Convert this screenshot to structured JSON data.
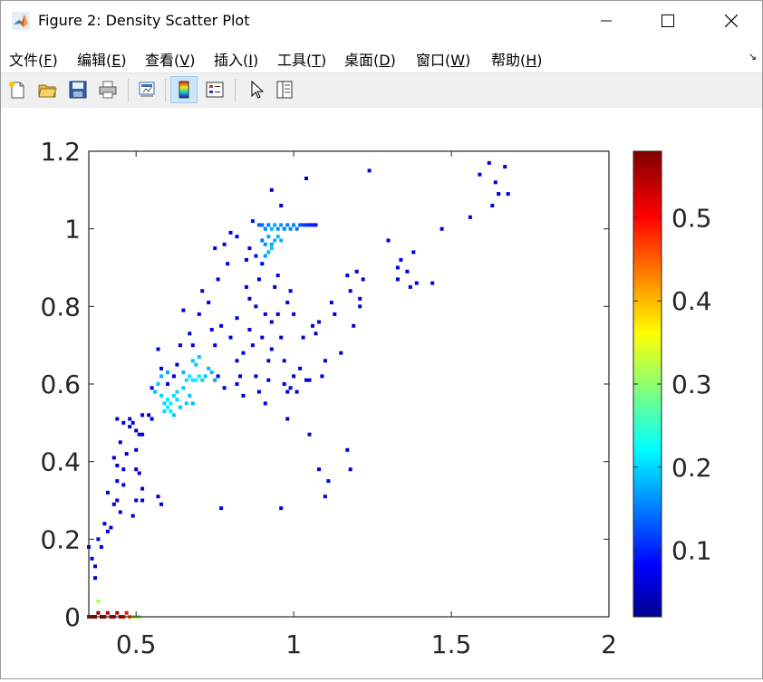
{
  "window": {
    "title": "Figure 2: Density Scatter Plot"
  },
  "menu": {
    "items": [
      {
        "label": "文件(",
        "key": "F",
        "suffix": ")"
      },
      {
        "label": "编辑(",
        "key": "E",
        "suffix": ")"
      },
      {
        "label": "查看(",
        "key": "V",
        "suffix": ")"
      },
      {
        "label": "插入(",
        "key": "I",
        "suffix": ")"
      },
      {
        "label": "工具(",
        "key": "T",
        "suffix": ")"
      },
      {
        "label": "桌面(",
        "key": "D",
        "suffix": ")"
      },
      {
        "label": "窗口(",
        "key": "W",
        "suffix": ")"
      },
      {
        "label": "帮助(",
        "key": "H",
        "suffix": ")"
      }
    ]
  },
  "toolbar": {
    "buttons": [
      "new-figure-icon",
      "open-file-icon",
      "save-icon",
      "print-icon",
      "link-plot-icon",
      "colorbar-toggle-icon",
      "legend-toggle-icon",
      "edit-pointer-icon",
      "property-inspector-icon"
    ],
    "active": "colorbar-toggle-icon"
  },
  "chart_data": {
    "type": "scatter",
    "colormap": "jet",
    "xlim": [
      0.35,
      2
    ],
    "ylim": [
      0,
      1.2
    ],
    "xticks": [
      "0.5",
      "1",
      "1.5",
      "2"
    ],
    "xtick_values": [
      0.5,
      1,
      1.5,
      2
    ],
    "yticks": [
      "0",
      "0.2",
      "0.4",
      "0.6",
      "0.8",
      "1",
      "1.2"
    ],
    "ytick_values": [
      0,
      0.2,
      0.4,
      0.6,
      0.8,
      1,
      1.2
    ],
    "colorbar": {
      "range": [
        0.02,
        0.58
      ],
      "ticks": [
        "0.1",
        "0.2",
        "0.3",
        "0.4",
        "0.5"
      ],
      "tick_values": [
        0.1,
        0.2,
        0.3,
        0.4,
        0.5
      ]
    },
    "points": [
      [
        0.35,
        0.18,
        0.08
      ],
      [
        0.36,
        0.15,
        0.08
      ],
      [
        0.37,
        0.13,
        0.08
      ],
      [
        0.37,
        0.1,
        0.08
      ],
      [
        0.38,
        0.2,
        0.08
      ],
      [
        0.39,
        0.18,
        0.07
      ],
      [
        0.4,
        0.24,
        0.07
      ],
      [
        0.41,
        0.22,
        0.07
      ],
      [
        0.42,
        0.23,
        0.07
      ],
      [
        0.41,
        0.32,
        0.07
      ],
      [
        0.43,
        0.29,
        0.07
      ],
      [
        0.44,
        0.3,
        0.07
      ],
      [
        0.45,
        0.27,
        0.07
      ],
      [
        0.44,
        0.35,
        0.07
      ],
      [
        0.43,
        0.41,
        0.07
      ],
      [
        0.44,
        0.39,
        0.07
      ],
      [
        0.46,
        0.34,
        0.07
      ],
      [
        0.45,
        0.45,
        0.07
      ],
      [
        0.46,
        0.38,
        0.07
      ],
      [
        0.47,
        0.42,
        0.07
      ],
      [
        0.44,
        0.51,
        0.07
      ],
      [
        0.46,
        0.5,
        0.07
      ],
      [
        0.48,
        0.49,
        0.07
      ],
      [
        0.48,
        0.51,
        0.07
      ],
      [
        0.49,
        0.5,
        0.07
      ],
      [
        0.5,
        0.48,
        0.07
      ],
      [
        0.5,
        0.43,
        0.07
      ],
      [
        0.49,
        0.26,
        0.07
      ],
      [
        0.5,
        0.3,
        0.07
      ],
      [
        0.5,
        0.38,
        0.07
      ],
      [
        0.51,
        0.37,
        0.07
      ],
      [
        0.52,
        0.33,
        0.07
      ],
      [
        0.52,
        0.3,
        0.07
      ],
      [
        0.51,
        0.47,
        0.07
      ],
      [
        0.52,
        0.47,
        0.07
      ],
      [
        0.52,
        0.52,
        0.07
      ],
      [
        0.54,
        0.52,
        0.07
      ],
      [
        0.55,
        0.59,
        0.07
      ],
      [
        0.57,
        0.69,
        0.07
      ],
      [
        0.58,
        0.64,
        0.07
      ],
      [
        0.57,
        0.31,
        0.07
      ],
      [
        0.58,
        0.29,
        0.07
      ],
      [
        0.55,
        0.51,
        0.07
      ],
      [
        0.6,
        0.6,
        0.07
      ],
      [
        0.62,
        0.62,
        0.07
      ],
      [
        0.63,
        0.65,
        0.07
      ],
      [
        0.64,
        0.7,
        0.07
      ],
      [
        0.65,
        0.79,
        0.07
      ],
      [
        0.67,
        0.73,
        0.07
      ],
      [
        0.68,
        0.7,
        0.07
      ],
      [
        0.7,
        0.78,
        0.07
      ],
      [
        0.71,
        0.84,
        0.07
      ],
      [
        0.73,
        0.81,
        0.07
      ],
      [
        0.74,
        0.74,
        0.07
      ],
      [
        0.75,
        0.7,
        0.07
      ],
      [
        0.76,
        0.62,
        0.07
      ],
      [
        0.77,
        0.75,
        0.07
      ],
      [
        0.78,
        0.59,
        0.07
      ],
      [
        0.78,
        0.96,
        0.07
      ],
      [
        0.8,
        0.99,
        0.07
      ],
      [
        0.79,
        0.91,
        0.07
      ],
      [
        0.8,
        0.72,
        0.07
      ],
      [
        0.82,
        0.66,
        0.07
      ],
      [
        0.82,
        0.6,
        0.07
      ],
      [
        0.83,
        0.62,
        0.07
      ],
      [
        0.84,
        0.57,
        0.07
      ],
      [
        0.82,
        0.77,
        0.07
      ],
      [
        0.84,
        0.68,
        0.07
      ],
      [
        0.85,
        0.85,
        0.07
      ],
      [
        0.85,
        0.92,
        0.07
      ],
      [
        0.86,
        0.82,
        0.07
      ],
      [
        0.86,
        0.74,
        0.07
      ],
      [
        0.87,
        0.7,
        0.07
      ],
      [
        0.88,
        0.8,
        0.07
      ],
      [
        0.88,
        0.62,
        0.07
      ],
      [
        0.89,
        0.58,
        0.07
      ],
      [
        0.89,
        0.87,
        0.07
      ],
      [
        0.9,
        0.91,
        0.07
      ],
      [
        0.9,
        0.72,
        0.07
      ],
      [
        0.91,
        0.78,
        0.07
      ],
      [
        0.91,
        0.55,
        0.07
      ],
      [
        0.92,
        0.61,
        0.07
      ],
      [
        0.92,
        0.66,
        0.07
      ],
      [
        0.93,
        0.69,
        0.07
      ],
      [
        0.93,
        0.76,
        0.07
      ],
      [
        0.94,
        0.85,
        0.07
      ],
      [
        0.95,
        0.78,
        0.07
      ],
      [
        0.95,
        0.88,
        0.07
      ],
      [
        0.96,
        0.72,
        0.07
      ],
      [
        0.97,
        0.66,
        0.07
      ],
      [
        0.97,
        0.6,
        0.07
      ],
      [
        0.98,
        0.58,
        0.07
      ],
      [
        0.99,
        0.59,
        0.07
      ],
      [
        0.98,
        0.81,
        0.07
      ],
      [
        0.99,
        0.84,
        0.07
      ],
      [
        1.0,
        0.78,
        0.07
      ],
      [
        1.0,
        0.62,
        0.07
      ],
      [
        1.01,
        0.58,
        0.07
      ],
      [
        1.02,
        0.64,
        0.07
      ],
      [
        1.03,
        0.72,
        0.07
      ],
      [
        1.04,
        0.61,
        0.07
      ],
      [
        1.05,
        0.61,
        0.07
      ],
      [
        1.06,
        0.75,
        0.07
      ],
      [
        1.07,
        0.73,
        0.07
      ],
      [
        1.08,
        0.76,
        0.07
      ],
      [
        1.09,
        0.62,
        0.07
      ],
      [
        1.1,
        0.66,
        0.07
      ],
      [
        1.11,
        0.35,
        0.07
      ],
      [
        1.12,
        0.81,
        0.07
      ],
      [
        1.13,
        0.78,
        0.07
      ],
      [
        1.1,
        0.31,
        0.07
      ],
      [
        1.08,
        0.38,
        0.07
      ],
      [
        1.05,
        0.47,
        0.07
      ],
      [
        0.96,
        0.28,
        0.07
      ],
      [
        0.98,
        0.51,
        0.07
      ],
      [
        0.77,
        0.28,
        0.07
      ],
      [
        0.93,
        1.1,
        0.07
      ],
      [
        0.96,
        1.06,
        0.07
      ],
      [
        1.04,
        1.13,
        0.07
      ],
      [
        1.15,
        0.68,
        0.07
      ],
      [
        1.17,
        0.88,
        0.07
      ],
      [
        1.17,
        0.43,
        0.07
      ],
      [
        1.18,
        0.38,
        0.07
      ],
      [
        1.18,
        0.84,
        0.07
      ],
      [
        1.19,
        0.75,
        0.07
      ],
      [
        1.2,
        0.89,
        0.07
      ],
      [
        1.21,
        0.82,
        0.07
      ],
      [
        1.21,
        0.8,
        0.07
      ],
      [
        1.22,
        0.87,
        0.07
      ],
      [
        1.24,
        1.15,
        0.07
      ],
      [
        1.3,
        0.97,
        0.07
      ],
      [
        1.33,
        0.9,
        0.07
      ],
      [
        1.33,
        0.87,
        0.07
      ],
      [
        1.34,
        0.92,
        0.07
      ],
      [
        1.36,
        0.89,
        0.07
      ],
      [
        1.37,
        0.85,
        0.07
      ],
      [
        1.38,
        0.94,
        0.07
      ],
      [
        1.39,
        0.86,
        0.07
      ],
      [
        1.44,
        0.86,
        0.07
      ],
      [
        1.47,
        1.0,
        0.07
      ],
      [
        1.56,
        1.03,
        0.07
      ],
      [
        1.59,
        1.14,
        0.07
      ],
      [
        1.62,
        1.17,
        0.07
      ],
      [
        1.63,
        1.06,
        0.07
      ],
      [
        1.64,
        1.12,
        0.07
      ],
      [
        1.65,
        1.09,
        0.07
      ],
      [
        1.67,
        1.16,
        0.07
      ],
      [
        1.68,
        1.09,
        0.07
      ],
      [
        0.75,
        0.95,
        0.08
      ],
      [
        0.76,
        0.87,
        0.08
      ],
      [
        0.82,
        0.98,
        0.08
      ],
      [
        0.86,
        0.95,
        0.08
      ],
      [
        0.87,
        1.02,
        0.1
      ],
      [
        0.88,
        0.93,
        0.1
      ],
      [
        0.56,
        0.58,
        0.2
      ],
      [
        0.57,
        0.6,
        0.2
      ],
      [
        0.58,
        0.57,
        0.21
      ],
      [
        0.59,
        0.55,
        0.21
      ],
      [
        0.6,
        0.56,
        0.22
      ],
      [
        0.61,
        0.55,
        0.22
      ],
      [
        0.62,
        0.57,
        0.21
      ],
      [
        0.63,
        0.56,
        0.21
      ],
      [
        0.64,
        0.54,
        0.2
      ],
      [
        0.66,
        0.55,
        0.2
      ],
      [
        0.6,
        0.54,
        0.22
      ],
      [
        0.61,
        0.53,
        0.22
      ],
      [
        0.59,
        0.53,
        0.21
      ],
      [
        0.62,
        0.52,
        0.2
      ],
      [
        0.63,
        0.58,
        0.21
      ],
      [
        0.65,
        0.59,
        0.2
      ],
      [
        0.66,
        0.61,
        0.21
      ],
      [
        0.67,
        0.62,
        0.22
      ],
      [
        0.68,
        0.61,
        0.22
      ],
      [
        0.69,
        0.61,
        0.23
      ],
      [
        0.7,
        0.62,
        0.22
      ],
      [
        0.71,
        0.61,
        0.21
      ],
      [
        0.72,
        0.62,
        0.2
      ],
      [
        0.73,
        0.64,
        0.19
      ],
      [
        0.74,
        0.63,
        0.19
      ],
      [
        0.75,
        0.61,
        0.18
      ],
      [
        0.68,
        0.66,
        0.2
      ],
      [
        0.7,
        0.67,
        0.2
      ],
      [
        0.69,
        0.65,
        0.2
      ],
      [
        0.67,
        0.57,
        0.2
      ],
      [
        0.68,
        0.55,
        0.19
      ],
      [
        0.65,
        0.63,
        0.19
      ],
      [
        0.58,
        0.62,
        0.19
      ],
      [
        0.6,
        0.63,
        0.18
      ],
      [
        0.9,
        0.97,
        0.16
      ],
      [
        0.91,
        0.96,
        0.17
      ],
      [
        0.92,
        0.98,
        0.18
      ],
      [
        0.93,
        1.0,
        0.19
      ],
      [
        0.94,
        1.01,
        0.18
      ],
      [
        0.95,
        1.0,
        0.17
      ],
      [
        0.96,
        1.01,
        0.17
      ],
      [
        0.97,
        1.0,
        0.16
      ],
      [
        0.98,
        1.01,
        0.16
      ],
      [
        0.99,
        1.0,
        0.16
      ],
      [
        1.0,
        1.01,
        0.16
      ],
      [
        1.01,
        1.0,
        0.15
      ],
      [
        1.02,
        1.01,
        0.14
      ],
      [
        1.03,
        1.01,
        0.13
      ],
      [
        0.89,
        1.01,
        0.14
      ],
      [
        0.9,
        1.01,
        0.15
      ],
      [
        0.91,
        1.0,
        0.16
      ],
      [
        0.92,
        1.01,
        0.16
      ],
      [
        0.93,
        0.96,
        0.18
      ],
      [
        0.94,
        0.97,
        0.19
      ],
      [
        0.95,
        0.98,
        0.19
      ],
      [
        0.96,
        0.97,
        0.19
      ],
      [
        0.92,
        0.94,
        0.19
      ],
      [
        0.91,
        0.93,
        0.18
      ],
      [
        0.93,
        0.95,
        0.2
      ],
      [
        1.04,
        1.01,
        0.12
      ],
      [
        1.05,
        1.01,
        0.11
      ],
      [
        1.06,
        1.01,
        0.11
      ],
      [
        1.07,
        1.01,
        0.1
      ],
      [
        0.35,
        0.0,
        0.55
      ],
      [
        0.36,
        0.0,
        0.56
      ],
      [
        0.37,
        0.0,
        0.57
      ],
      [
        0.38,
        0.01,
        0.57
      ],
      [
        0.39,
        0.0,
        0.58
      ],
      [
        0.4,
        0.0,
        0.55
      ],
      [
        0.41,
        0.01,
        0.54
      ],
      [
        0.42,
        0.0,
        0.55
      ],
      [
        0.43,
        0.0,
        0.56
      ],
      [
        0.44,
        0.01,
        0.55
      ],
      [
        0.45,
        0.0,
        0.54
      ],
      [
        0.46,
        0.0,
        0.52
      ],
      [
        0.47,
        0.01,
        0.5
      ],
      [
        0.48,
        0.0,
        0.46
      ],
      [
        0.49,
        0.0,
        0.4
      ],
      [
        0.5,
        0.0,
        0.33
      ],
      [
        0.51,
        0.0,
        0.3
      ],
      [
        0.38,
        0.04,
        0.32
      ]
    ]
  }
}
